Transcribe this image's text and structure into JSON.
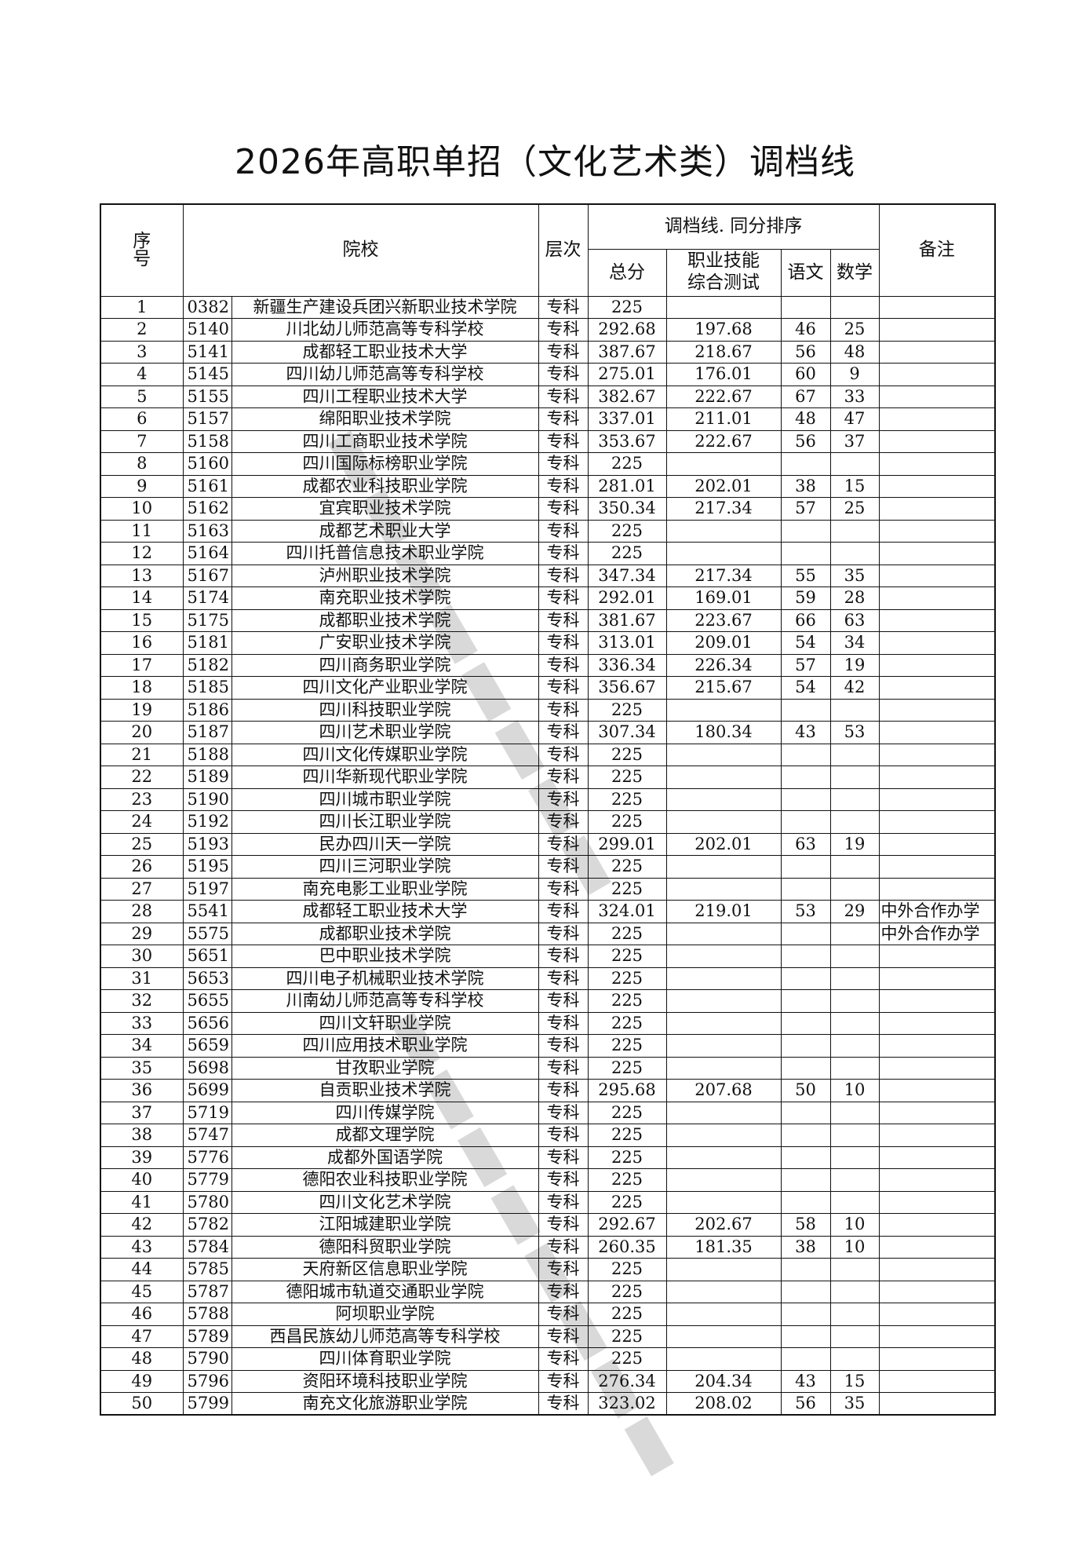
{
  "title": "2026年高职单招（文化艺术类）调档线",
  "headers": {
    "no": "序号",
    "school": "院校",
    "level": "层次",
    "group": "调档线. 同分排序",
    "total": "总分",
    "skill": "职业技能综合测试",
    "chinese": "语文",
    "math": "数学",
    "note": "备注"
  },
  "rows": [
    [
      "1",
      "0382",
      "新疆生产建设兵团兴新职业技术学院",
      "专科",
      "225",
      "",
      "",
      "",
      ""
    ],
    [
      "2",
      "5140",
      "川北幼儿师范高等专科学校",
      "专科",
      "292.68",
      "197.68",
      "46",
      "25",
      ""
    ],
    [
      "3",
      "5141",
      "成都轻工职业技术大学",
      "专科",
      "387.67",
      "218.67",
      "56",
      "48",
      ""
    ],
    [
      "4",
      "5145",
      "四川幼儿师范高等专科学校",
      "专科",
      "275.01",
      "176.01",
      "60",
      "9",
      ""
    ],
    [
      "5",
      "5155",
      "四川工程职业技术大学",
      "专科",
      "382.67",
      "222.67",
      "67",
      "33",
      ""
    ],
    [
      "6",
      "5157",
      "绵阳职业技术学院",
      "专科",
      "337.01",
      "211.01",
      "48",
      "47",
      ""
    ],
    [
      "7",
      "5158",
      "四川工商职业技术学院",
      "专科",
      "353.67",
      "222.67",
      "56",
      "37",
      ""
    ],
    [
      "8",
      "5160",
      "四川国际标榜职业学院",
      "专科",
      "225",
      "",
      "",
      "",
      ""
    ],
    [
      "9",
      "5161",
      "成都农业科技职业学院",
      "专科",
      "281.01",
      "202.01",
      "38",
      "15",
      ""
    ],
    [
      "10",
      "5162",
      "宜宾职业技术学院",
      "专科",
      "350.34",
      "217.34",
      "57",
      "25",
      ""
    ],
    [
      "11",
      "5163",
      "成都艺术职业大学",
      "专科",
      "225",
      "",
      "",
      "",
      ""
    ],
    [
      "12",
      "5164",
      "四川托普信息技术职业学院",
      "专科",
      "225",
      "",
      "",
      "",
      ""
    ],
    [
      "13",
      "5167",
      "泸州职业技术学院",
      "专科",
      "347.34",
      "217.34",
      "55",
      "35",
      ""
    ],
    [
      "14",
      "5174",
      "南充职业技术学院",
      "专科",
      "292.01",
      "169.01",
      "59",
      "28",
      ""
    ],
    [
      "15",
      "5175",
      "成都职业技术学院",
      "专科",
      "381.67",
      "223.67",
      "66",
      "63",
      ""
    ],
    [
      "16",
      "5181",
      "广安职业技术学院",
      "专科",
      "313.01",
      "209.01",
      "54",
      "34",
      ""
    ],
    [
      "17",
      "5182",
      "四川商务职业学院",
      "专科",
      "336.34",
      "226.34",
      "57",
      "19",
      ""
    ],
    [
      "18",
      "5185",
      "四川文化产业职业学院",
      "专科",
      "356.67",
      "215.67",
      "54",
      "42",
      ""
    ],
    [
      "19",
      "5186",
      "四川科技职业学院",
      "专科",
      "225",
      "",
      "",
      "",
      ""
    ],
    [
      "20",
      "5187",
      "四川艺术职业学院",
      "专科",
      "307.34",
      "180.34",
      "43",
      "53",
      ""
    ],
    [
      "21",
      "5188",
      "四川文化传媒职业学院",
      "专科",
      "225",
      "",
      "",
      "",
      ""
    ],
    [
      "22",
      "5189",
      "四川华新现代职业学院",
      "专科",
      "225",
      "",
      "",
      "",
      ""
    ],
    [
      "23",
      "5190",
      "四川城市职业学院",
      "专科",
      "225",
      "",
      "",
      "",
      ""
    ],
    [
      "24",
      "5192",
      "四川长江职业学院",
      "专科",
      "225",
      "",
      "",
      "",
      ""
    ],
    [
      "25",
      "5193",
      "民办四川天一学院",
      "专科",
      "299.01",
      "202.01",
      "63",
      "19",
      ""
    ],
    [
      "26",
      "5195",
      "四川三河职业学院",
      "专科",
      "225",
      "",
      "",
      "",
      ""
    ],
    [
      "27",
      "5197",
      "南充电影工业职业学院",
      "专科",
      "225",
      "",
      "",
      "",
      ""
    ],
    [
      "28",
      "5541",
      "成都轻工职业技术大学",
      "专科",
      "324.01",
      "219.01",
      "53",
      "29",
      "中外合作办学"
    ],
    [
      "29",
      "5575",
      "成都职业技术学院",
      "专科",
      "225",
      "",
      "",
      "",
      "中外合作办学"
    ],
    [
      "30",
      "5651",
      "巴中职业技术学院",
      "专科",
      "225",
      "",
      "",
      "",
      ""
    ],
    [
      "31",
      "5653",
      "四川电子机械职业技术学院",
      "专科",
      "225",
      "",
      "",
      "",
      ""
    ],
    [
      "32",
      "5655",
      "川南幼儿师范高等专科学校",
      "专科",
      "225",
      "",
      "",
      "",
      ""
    ],
    [
      "33",
      "5656",
      "四川文轩职业学院",
      "专科",
      "225",
      "",
      "",
      "",
      ""
    ],
    [
      "34",
      "5659",
      "四川应用技术职业学院",
      "专科",
      "225",
      "",
      "",
      "",
      ""
    ],
    [
      "35",
      "5698",
      "甘孜职业学院",
      "专科",
      "225",
      "",
      "",
      "",
      ""
    ],
    [
      "36",
      "5699",
      "自贡职业技术学院",
      "专科",
      "295.68",
      "207.68",
      "50",
      "10",
      ""
    ],
    [
      "37",
      "5719",
      "四川传媒学院",
      "专科",
      "225",
      "",
      "",
      "",
      ""
    ],
    [
      "38",
      "5747",
      "成都文理学院",
      "专科",
      "225",
      "",
      "",
      "",
      ""
    ],
    [
      "39",
      "5776",
      "成都外国语学院",
      "专科",
      "225",
      "",
      "",
      "",
      ""
    ],
    [
      "40",
      "5779",
      "德阳农业科技职业学院",
      "专科",
      "225",
      "",
      "",
      "",
      ""
    ],
    [
      "41",
      "5780",
      "四川文化艺术学院",
      "专科",
      "225",
      "",
      "",
      "",
      ""
    ],
    [
      "42",
      "5782",
      "江阳城建职业学院",
      "专科",
      "292.67",
      "202.67",
      "58",
      "10",
      ""
    ],
    [
      "43",
      "5784",
      "德阳科贸职业学院",
      "专科",
      "260.35",
      "181.35",
      "38",
      "10",
      ""
    ],
    [
      "44",
      "5785",
      "天府新区信息职业学院",
      "专科",
      "225",
      "",
      "",
      "",
      ""
    ],
    [
      "45",
      "5787",
      "德阳城市轨道交通职业学院",
      "专科",
      "225",
      "",
      "",
      "",
      ""
    ],
    [
      "46",
      "5788",
      "阿坝职业学院",
      "专科",
      "225",
      "",
      "",
      "",
      ""
    ],
    [
      "47",
      "5789",
      "西昌民族幼儿师范高等专科学校",
      "专科",
      "225",
      "",
      "",
      "",
      ""
    ],
    [
      "48",
      "5790",
      "四川体育职业学院",
      "专科",
      "225",
      "",
      "",
      "",
      ""
    ],
    [
      "49",
      "5796",
      "资阳环境科技职业学院",
      "专科",
      "276.34",
      "204.34",
      "43",
      "15",
      ""
    ],
    [
      "50",
      "5799",
      "南充文化旅游职业学院",
      "专科",
      "323.02",
      "208.02",
      "56",
      "35",
      ""
    ]
  ]
}
